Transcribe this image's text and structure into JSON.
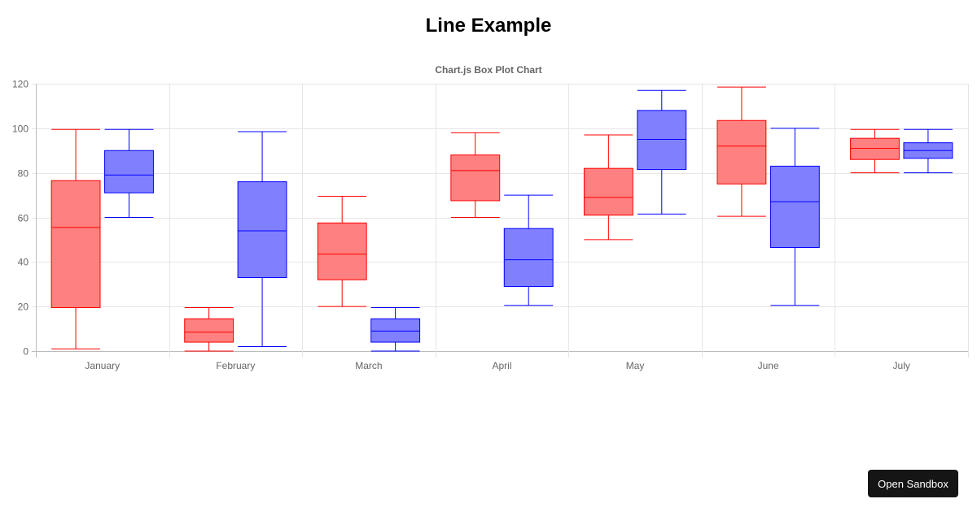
{
  "page": {
    "title": "Line Example"
  },
  "sandbox_button": {
    "label": "Open Sandbox"
  },
  "chart_data": {
    "type": "boxplot",
    "title": "Chart.js Box Plot Chart",
    "categories": [
      "January",
      "February",
      "March",
      "April",
      "May",
      "June",
      "July"
    ],
    "ylim": [
      0,
      120
    ],
    "yticks": [
      0,
      20,
      40,
      60,
      80,
      100,
      120
    ],
    "grid": true,
    "legend": "none",
    "series": [
      {
        "color": "#ff0000",
        "fill": "#ff8080",
        "boxes": [
          {
            "min": 1,
            "q1": 19.5,
            "median": 55.5,
            "q3": 76.5,
            "max": 99.5
          },
          {
            "min": 0,
            "q1": 4,
            "median": 8.5,
            "q3": 14.5,
            "max": 19.5
          },
          {
            "min": 20,
            "q1": 32,
            "median": 43.5,
            "q3": 57.5,
            "max": 69.5
          },
          {
            "min": 60,
            "q1": 67.5,
            "median": 81,
            "q3": 88,
            "max": 98
          },
          {
            "min": 50,
            "q1": 61,
            "median": 69,
            "q3": 82,
            "max": 97
          },
          {
            "min": 60.5,
            "q1": 75,
            "median": 92,
            "q3": 103.5,
            "max": 118.5
          },
          {
            "min": 80,
            "q1": 86,
            "median": 91,
            "q3": 95.5,
            "max": 99.5
          }
        ]
      },
      {
        "color": "#0000ff",
        "fill": "#8080ff",
        "boxes": [
          {
            "min": 60,
            "q1": 71,
            "median": 79,
            "q3": 90,
            "max": 99.5
          },
          {
            "min": 2,
            "q1": 33,
            "median": 54,
            "q3": 76,
            "max": 98.5
          },
          {
            "min": 0,
            "q1": 4,
            "median": 9,
            "q3": 14.5,
            "max": 19.5
          },
          {
            "min": 20.5,
            "q1": 29,
            "median": 41,
            "q3": 55,
            "max": 70
          },
          {
            "min": 61.5,
            "q1": 81.5,
            "median": 95,
            "q3": 108,
            "max": 117
          },
          {
            "min": 20.5,
            "q1": 46.5,
            "median": 67,
            "q3": 83,
            "max": 100
          },
          {
            "min": 80,
            "q1": 86.5,
            "median": 90,
            "q3": 93.5,
            "max": 99.5
          }
        ]
      }
    ]
  }
}
